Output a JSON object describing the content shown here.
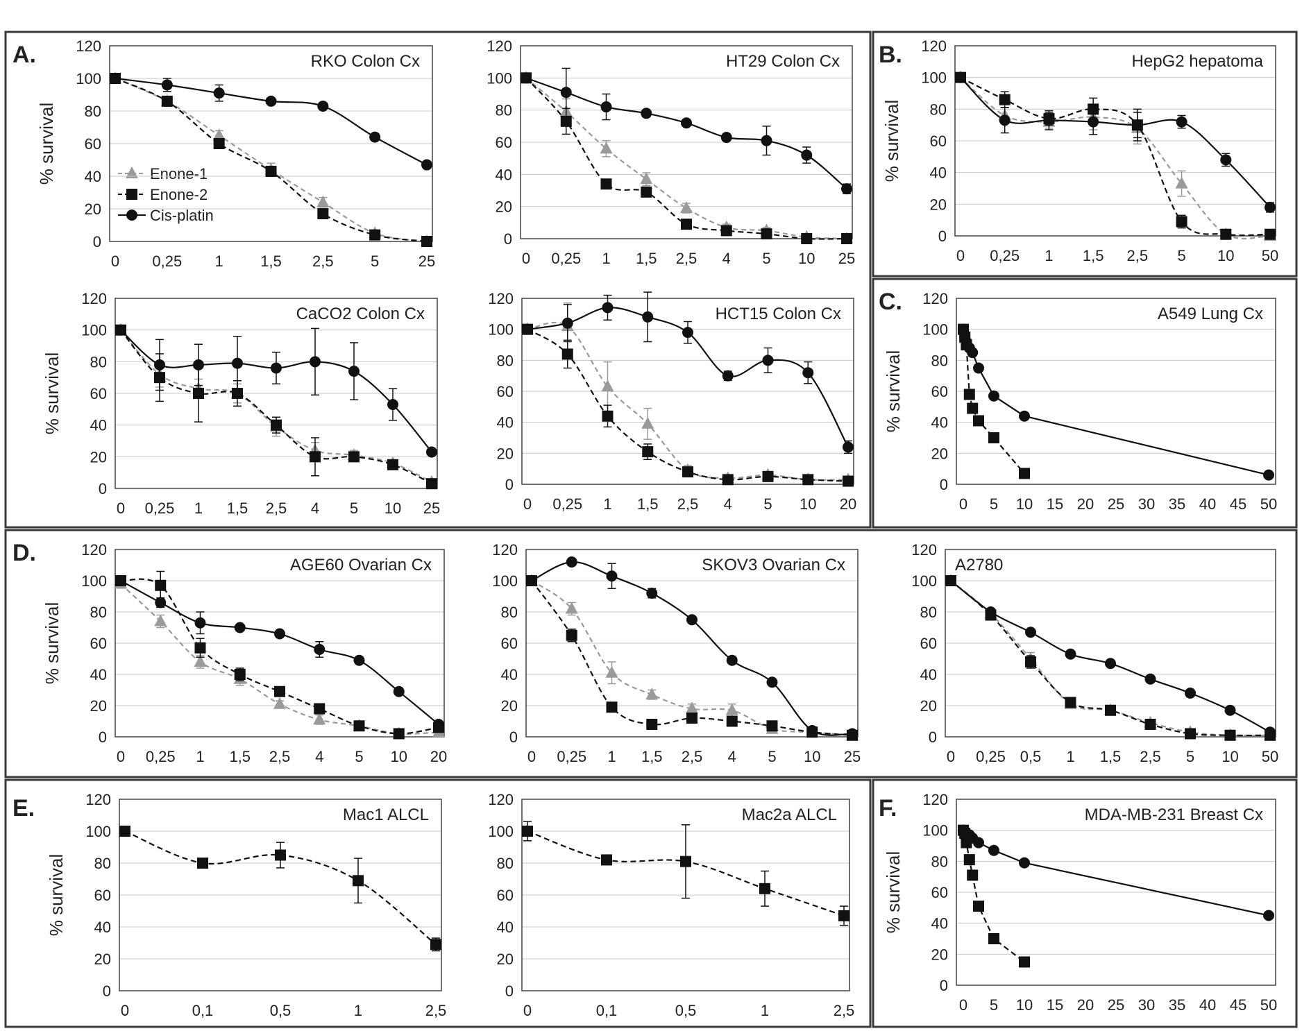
{
  "legend": {
    "enone1": "Enone-1",
    "enone2": "Enone-2",
    "cisplatin": "Cis-platin"
  },
  "colors": {
    "enone1": "#9a9a9a",
    "enone2": "#111111",
    "cisplatin": "#111111",
    "grid": "#c8c8c8",
    "frame": "#444444"
  },
  "group_labels": {
    "A": "A.",
    "B": "B.",
    "C": "C.",
    "D": "D.",
    "E": "E.",
    "F": "F."
  },
  "chart_data": [
    {
      "id": "rko",
      "type": "line",
      "title": "RKO Colon Cx",
      "ylabel": "% survival",
      "ylim": [
        0,
        120
      ],
      "yticks": [
        0,
        20,
        40,
        60,
        80,
        100,
        120
      ],
      "categories": [
        "0",
        "0,25",
        "1",
        "1,5",
        "2,5",
        "5",
        "25"
      ],
      "legend": true,
      "series": [
        {
          "name": "Enone-1",
          "values": [
            100,
            86,
            65,
            44,
            24,
            5,
            0
          ],
          "err": [
            0,
            3,
            3,
            4,
            3,
            1,
            0
          ]
        },
        {
          "name": "Enone-2",
          "values": [
            100,
            86,
            60,
            43,
            17,
            4,
            0
          ],
          "err": [
            0,
            3,
            2,
            3,
            2,
            1,
            0
          ]
        },
        {
          "name": "Cis-platin",
          "values": [
            100,
            96,
            91,
            86,
            83,
            64,
            47
          ],
          "err": [
            0,
            4,
            5,
            2,
            2,
            2,
            2
          ]
        }
      ]
    },
    {
      "id": "ht29",
      "type": "line",
      "title": "HT29 Colon Cx",
      "ylabel": "",
      "ylim": [
        0,
        120
      ],
      "yticks": [
        0,
        20,
        40,
        60,
        80,
        100,
        120
      ],
      "categories": [
        "0",
        "0,25",
        "1",
        "1,5",
        "2,5",
        "4",
        "5",
        "10",
        "25"
      ],
      "legend": false,
      "series": [
        {
          "name": "Enone-1",
          "values": [
            100,
            79,
            56,
            37,
            19,
            7,
            5,
            1,
            0
          ],
          "err": [
            0,
            8,
            5,
            4,
            3,
            2,
            2,
            1,
            0
          ]
        },
        {
          "name": "Enone-2",
          "values": [
            100,
            73,
            34,
            29,
            9,
            5,
            3,
            0,
            0
          ],
          "err": [
            0,
            8,
            3,
            3,
            2,
            1,
            1,
            0,
            0
          ]
        },
        {
          "name": "Cis-platin",
          "values": [
            100,
            91,
            82,
            78,
            72,
            63,
            61,
            52,
            31
          ],
          "err": [
            0,
            15,
            8,
            2,
            2,
            2,
            9,
            5,
            3
          ]
        }
      ]
    },
    {
      "id": "hepg2",
      "type": "line",
      "title": "HepG2 hepatoma",
      "ylabel": "% survival",
      "ylim": [
        0,
        120
      ],
      "yticks": [
        0,
        20,
        40,
        60,
        80,
        100,
        120
      ],
      "categories": [
        "0",
        "0,25",
        "1",
        "1,5",
        "2,5",
        "5",
        "10",
        "50"
      ],
      "legend": false,
      "series": [
        {
          "name": "Enone-1",
          "values": [
            100,
            76,
            72,
            75,
            68,
            33,
            1,
            0
          ],
          "err": [
            0,
            5,
            4,
            8,
            10,
            8,
            1,
            0
          ]
        },
        {
          "name": "Enone-2",
          "values": [
            100,
            86,
            74,
            80,
            70,
            9,
            1,
            1
          ],
          "err": [
            0,
            5,
            4,
            7,
            10,
            4,
            1,
            0
          ]
        },
        {
          "name": "Cis-platin",
          "values": [
            100,
            73,
            73,
            72,
            70,
            72,
            48,
            18
          ],
          "err": [
            0,
            8,
            6,
            8,
            8,
            4,
            4,
            3
          ]
        }
      ]
    },
    {
      "id": "caco2",
      "type": "line",
      "title": "CaCO2 Colon Cx",
      "ylabel": "% survival",
      "ylim": [
        0,
        120
      ],
      "yticks": [
        0,
        20,
        40,
        60,
        80,
        100,
        120
      ],
      "categories": [
        "0",
        "0,25",
        "1",
        "1,5",
        "2,5",
        "4",
        "5",
        "10",
        "25"
      ],
      "legend": false,
      "series": [
        {
          "name": "Enone-1",
          "values": [
            100,
            72,
            63,
            60,
            39,
            24,
            21,
            16,
            4
          ],
          "err": [
            0,
            8,
            6,
            6,
            6,
            5,
            3,
            2,
            2
          ]
        },
        {
          "name": "Enone-2",
          "values": [
            100,
            70,
            60,
            60,
            40,
            20,
            20,
            15,
            3
          ],
          "err": [
            0,
            15,
            18,
            8,
            5,
            12,
            3,
            2,
            2
          ]
        },
        {
          "name": "Cis-platin",
          "values": [
            100,
            78,
            78,
            79,
            76,
            80,
            74,
            53,
            23
          ],
          "err": [
            0,
            16,
            13,
            17,
            10,
            21,
            18,
            10,
            2
          ]
        }
      ]
    },
    {
      "id": "hct15",
      "type": "line",
      "title": "HCT15 Colon Cx",
      "ylabel": "",
      "ylim": [
        0,
        120
      ],
      "yticks": [
        0,
        20,
        40,
        60,
        80,
        100,
        120
      ],
      "categories": [
        "0",
        "0,25",
        "1",
        "1,5",
        "2,5",
        "4",
        "5",
        "10",
        "20"
      ],
      "legend": false,
      "series": [
        {
          "name": "Enone-1",
          "values": [
            100,
            102,
            63,
            39,
            9,
            4,
            6,
            3,
            3
          ],
          "err": [
            0,
            15,
            16,
            10,
            3,
            2,
            2,
            2,
            2
          ]
        },
        {
          "name": "Enone-2",
          "values": [
            100,
            84,
            44,
            21,
            8,
            3,
            5,
            3,
            2
          ],
          "err": [
            0,
            9,
            7,
            5,
            2,
            2,
            2,
            2,
            2
          ]
        },
        {
          "name": "Cis-platin",
          "values": [
            100,
            104,
            114,
            108,
            98,
            70,
            80,
            72,
            24
          ],
          "err": [
            0,
            12,
            8,
            16,
            7,
            3,
            8,
            7,
            4
          ]
        }
      ]
    },
    {
      "id": "a549",
      "type": "scatter",
      "title": "A549 Lung Cx",
      "ylabel": "% survival",
      "ylim": [
        0,
        120
      ],
      "yticks": [
        0,
        20,
        40,
        60,
        80,
        100,
        120
      ],
      "xlim": [
        0,
        50
      ],
      "xticks": [
        0,
        5,
        10,
        15,
        20,
        25,
        30,
        35,
        40,
        45,
        50
      ],
      "legend": false,
      "series": [
        {
          "name": "Enone-2",
          "x": [
            0,
            0.25,
            0.5,
            1,
            1.5,
            2.5,
            5,
            10
          ],
          "values": [
            100,
            95,
            90,
            58,
            49,
            41,
            30,
            7
          ]
        },
        {
          "name": "Cis-platin",
          "x": [
            0,
            0.25,
            0.5,
            1,
            1.5,
            2.5,
            5,
            10,
            50
          ],
          "values": [
            100,
            95,
            92,
            88,
            85,
            75,
            57,
            44,
            6
          ]
        }
      ]
    },
    {
      "id": "age60",
      "type": "line",
      "title": "AGE60 Ovarian Cx",
      "ylabel": "% survival",
      "ylim": [
        0,
        120
      ],
      "yticks": [
        0,
        20,
        40,
        60,
        80,
        100,
        120
      ],
      "categories": [
        "0",
        "0,25",
        "1",
        "1,5",
        "2,5",
        "4",
        "5",
        "10",
        "20"
      ],
      "legend": false,
      "series": [
        {
          "name": "Enone-1",
          "values": [
            98,
            74,
            48,
            37,
            21,
            11,
            7,
            2,
            3
          ],
          "err": [
            0,
            4,
            4,
            4,
            2,
            3,
            2,
            1,
            1
          ]
        },
        {
          "name": "Enone-2",
          "values": [
            100,
            97,
            57,
            40,
            29,
            18,
            7,
            2,
            6
          ],
          "err": [
            0,
            9,
            6,
            4,
            3,
            3,
            2,
            1,
            1
          ]
        },
        {
          "name": "Cis-platin",
          "values": [
            100,
            86,
            73,
            70,
            66,
            56,
            49,
            29,
            8
          ],
          "err": [
            0,
            3,
            7,
            2,
            2,
            5,
            2,
            2,
            2
          ]
        }
      ]
    },
    {
      "id": "skov3",
      "type": "line",
      "title": "SKOV3 Ovarian Cx",
      "ylabel": "",
      "ylim": [
        0,
        120
      ],
      "yticks": [
        0,
        20,
        40,
        60,
        80,
        100,
        120
      ],
      "categories": [
        "0",
        "0,25",
        "1",
        "1,5",
        "2,5",
        "4",
        "5",
        "10",
        "25"
      ],
      "legend": false,
      "series": [
        {
          "name": "Enone-1",
          "values": [
            100,
            82,
            41,
            27,
            18,
            17,
            5,
            3,
            1
          ],
          "err": [
            0,
            4,
            7,
            3,
            3,
            4,
            2,
            1,
            1
          ]
        },
        {
          "name": "Enone-2",
          "values": [
            100,
            65,
            19,
            8,
            12,
            10,
            7,
            3,
            1
          ],
          "err": [
            0,
            4,
            2,
            2,
            2,
            2,
            2,
            1,
            1
          ]
        },
        {
          "name": "Cis-platin",
          "values": [
            100,
            112,
            103,
            92,
            75,
            49,
            35,
            4,
            2
          ],
          "err": [
            0,
            2,
            8,
            3,
            2,
            2,
            2,
            1,
            1
          ]
        }
      ]
    },
    {
      "id": "a2780",
      "type": "line",
      "title": "A2780",
      "ylabel": "",
      "ylim": [
        0,
        120
      ],
      "yticks": [
        0,
        20,
        40,
        60,
        80,
        100,
        120
      ],
      "categories": [
        "0",
        "0,25",
        "0,5",
        "1",
        "1,5",
        "2,5",
        "5",
        "10",
        "50"
      ],
      "legend": false,
      "series": [
        {
          "name": "Enone-1",
          "values": [
            100,
            79,
            50,
            21,
            17,
            9,
            3,
            1,
            1
          ],
          "err": [
            0,
            3,
            4,
            2,
            2,
            2,
            1,
            1,
            1
          ]
        },
        {
          "name": "Enone-2",
          "values": [
            100,
            78,
            48,
            22,
            17,
            8,
            2,
            1,
            1
          ],
          "err": [
            0,
            3,
            4,
            2,
            2,
            2,
            1,
            1,
            1
          ]
        },
        {
          "name": "Cis-platin",
          "values": [
            100,
            80,
            67,
            53,
            47,
            37,
            28,
            17,
            3
          ],
          "err": [
            0,
            2,
            2,
            2,
            2,
            2,
            2,
            2,
            1
          ]
        }
      ]
    },
    {
      "id": "mac1",
      "type": "line",
      "title": "Mac1 ALCL",
      "ylabel": "% survival",
      "ylim": [
        0,
        120
      ],
      "yticks": [
        0,
        20,
        40,
        60,
        80,
        100,
        120
      ],
      "categories": [
        "0",
        "0,1",
        "0,5",
        "1",
        "2,5"
      ],
      "legend": false,
      "series": [
        {
          "name": "Enone-2",
          "values": [
            100,
            80,
            85,
            69,
            29
          ],
          "err": [
            0,
            2,
            8,
            14,
            4
          ]
        }
      ]
    },
    {
      "id": "mac2a",
      "type": "line",
      "title": "Mac2a ALCL",
      "ylabel": "",
      "ylim": [
        0,
        120
      ],
      "yticks": [
        0,
        20,
        40,
        60,
        80,
        100,
        120
      ],
      "categories": [
        "0",
        "0,1",
        "0,5",
        "1",
        "2,5"
      ],
      "legend": false,
      "series": [
        {
          "name": "Enone-2",
          "values": [
            100,
            82,
            81,
            64,
            47
          ],
          "err": [
            6,
            2,
            23,
            11,
            6
          ]
        }
      ]
    },
    {
      "id": "mdamb231",
      "type": "scatter",
      "title": "MDA-MB-231 Breast Cx",
      "ylabel": "% survival",
      "ylim": [
        0,
        120
      ],
      "yticks": [
        0,
        20,
        40,
        60,
        80,
        100,
        120
      ],
      "xlim": [
        0,
        50
      ],
      "xticks": [
        0,
        5,
        10,
        15,
        20,
        25,
        30,
        35,
        40,
        45,
        50
      ],
      "legend": false,
      "series": [
        {
          "name": "Enone-2",
          "x": [
            0,
            0.25,
            0.5,
            1,
            1.5,
            2.5,
            5,
            10
          ],
          "values": [
            100,
            98,
            92,
            81,
            71,
            51,
            30,
            15
          ]
        },
        {
          "name": "Cis-platin",
          "x": [
            0,
            0.25,
            0.5,
            1,
            1.5,
            2.5,
            5,
            10,
            50
          ],
          "values": [
            100,
            99,
            98,
            97,
            95,
            92,
            87,
            79,
            45
          ]
        }
      ]
    }
  ]
}
